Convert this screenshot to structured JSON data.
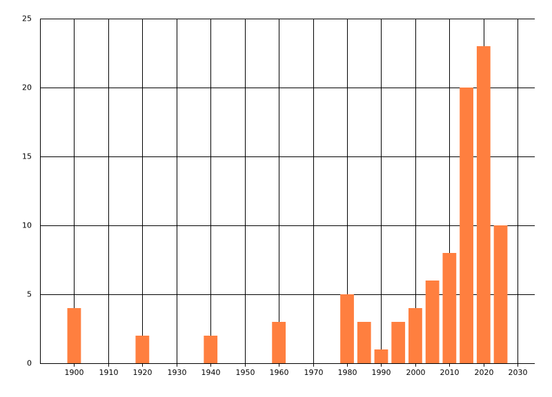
{
  "chart_data": {
    "type": "bar",
    "x": [
      1900,
      1920,
      1940,
      1960,
      1980,
      1985,
      1990,
      1995,
      2000,
      2005,
      2010,
      2015,
      2020,
      2025
    ],
    "values": [
      4,
      2,
      2,
      3,
      5,
      3,
      1,
      3,
      4,
      6,
      8,
      20,
      23,
      10
    ],
    "color": "#ff7f3f",
    "xlim": [
      1890,
      2035
    ],
    "xticks": [
      1900,
      1910,
      1920,
      1930,
      1940,
      1950,
      1960,
      1970,
      1980,
      1990,
      2000,
      2010,
      2020,
      2030
    ],
    "ylim": [
      0,
      25
    ],
    "yticks": [
      0,
      5,
      10,
      15,
      20,
      25
    ],
    "grid": true
  }
}
